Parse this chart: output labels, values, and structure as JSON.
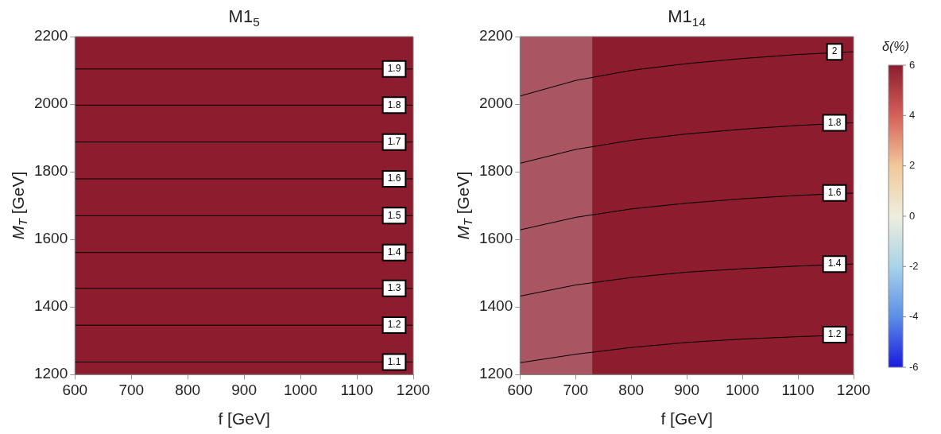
{
  "chart_data": [
    {
      "type": "line",
      "title": "M1$_{5}$",
      "xlabel": "f [GeV]",
      "ylabel": "M$_{T}$ [GeV]",
      "xlim": [
        600,
        1200
      ],
      "ylim": [
        1200,
        2200
      ],
      "xticks": [
        600,
        700,
        800,
        900,
        1000,
        1100,
        1200
      ],
      "yticks": [
        1200,
        1400,
        1600,
        1800,
        2000,
        2200
      ],
      "grid": false,
      "legend": false,
      "bands": [
        {
          "axis": "y",
          "from": 1200,
          "to": 2200,
          "color": "#8c1c2e"
        }
      ],
      "series": [
        {
          "name": "1.1",
          "color": "#000000",
          "x": [
            600,
            1200
          ],
          "values": [
            1237,
            1237
          ]
        },
        {
          "name": "1.2",
          "color": "#000000",
          "x": [
            600,
            1200
          ],
          "values": [
            1346,
            1346
          ]
        },
        {
          "name": "1.3",
          "color": "#000000",
          "x": [
            600,
            1200
          ],
          "values": [
            1455,
            1455
          ]
        },
        {
          "name": "1.4",
          "color": "#000000",
          "x": [
            600,
            1200
          ],
          "values": [
            1561,
            1561
          ]
        },
        {
          "name": "1.5",
          "color": "#000000",
          "x": [
            600,
            1200
          ],
          "values": [
            1670,
            1670
          ]
        },
        {
          "name": "1.6",
          "color": "#000000",
          "x": [
            600,
            1200
          ],
          "values": [
            1779,
            1779
          ]
        },
        {
          "name": "1.7",
          "color": "#000000",
          "x": [
            600,
            1200
          ],
          "values": [
            1888,
            1888
          ]
        },
        {
          "name": "1.8",
          "color": "#000000",
          "x": [
            600,
            1200
          ],
          "values": [
            1997,
            1997
          ]
        },
        {
          "name": "1.9",
          "color": "#000000",
          "x": [
            600,
            1200
          ],
          "values": [
            2104,
            2104
          ]
        }
      ]
    },
    {
      "type": "line",
      "title": "M1$_{14}$",
      "xlabel": "f [GeV]",
      "ylabel": "M$_{T}$ [GeV]",
      "xlim": [
        600,
        1200
      ],
      "ylim": [
        1200,
        2200
      ],
      "xticks": [
        600,
        700,
        800,
        900,
        1000,
        1100,
        1200
      ],
      "yticks": [
        1200,
        1400,
        1600,
        1800,
        2000,
        2200
      ],
      "grid": false,
      "legend": false,
      "clabel": "δ(%)",
      "clim": [
        -6,
        6
      ],
      "cticks": [
        -6,
        -4,
        -2,
        0,
        2,
        4,
        6
      ],
      "bands": [
        {
          "axis": "y",
          "from": 1200,
          "to": 2200,
          "color": "#8c1c2e"
        },
        {
          "axis": "x",
          "from": 600,
          "to": 730,
          "color": "#ffffff"
        }
      ],
      "series": [
        {
          "name": "1.2",
          "color": "#000000",
          "x": [
            600,
            700,
            800,
            900,
            1000,
            1100,
            1200
          ],
          "values": [
            1235,
            1260,
            1280,
            1295,
            1305,
            1312,
            1318
          ]
        },
        {
          "name": "1.4",
          "color": "#000000",
          "x": [
            600,
            700,
            800,
            900,
            1000,
            1100,
            1200
          ],
          "values": [
            1432,
            1465,
            1487,
            1503,
            1513,
            1521,
            1527
          ]
        },
        {
          "name": "1.6",
          "color": "#000000",
          "x": [
            600,
            700,
            800,
            900,
            1000,
            1100,
            1200
          ],
          "values": [
            1628,
            1665,
            1690,
            1707,
            1720,
            1730,
            1737
          ]
        },
        {
          "name": "1.8",
          "color": "#000000",
          "x": [
            600,
            700,
            800,
            900,
            1000,
            1100,
            1200
          ],
          "values": [
            1825,
            1866,
            1893,
            1912,
            1926,
            1937,
            1945
          ]
        },
        {
          "name": "2",
          "color": "#000000",
          "x": [
            600,
            700,
            800,
            900,
            1000,
            1100,
            1200
          ],
          "values": [
            2024,
            2070,
            2100,
            2120,
            2135,
            2147,
            2155
          ]
        }
      ]
    }
  ]
}
